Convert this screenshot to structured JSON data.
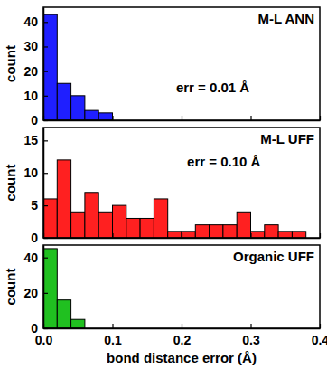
{
  "chart_data": [
    {
      "type": "histogram",
      "title": "M-L ANN",
      "y_label": "count",
      "annotation": "err = 0.01 Å",
      "bins": [
        0,
        0.02,
        0.04,
        0.06,
        0.08,
        0.1
      ],
      "values": [
        43,
        15,
        10,
        4,
        3
      ],
      "color": "#1f1fff",
      "xlim": [
        0,
        0.4
      ],
      "xticks": [
        {
          "value": 0,
          "label": "0.0"
        },
        0.1,
        0.2,
        0.3,
        0.4
      ],
      "ylim": [
        0,
        46
      ],
      "yticks": [
        0,
        10,
        20,
        30,
        40
      ],
      "tick_labels": "y"
    },
    {
      "type": "histogram",
      "title": "M-L UFF",
      "y_label": "count",
      "annotation": "err = 0.10 Å",
      "bins": [
        0,
        0.02,
        0.04,
        0.06,
        0.08,
        0.1,
        0.12,
        0.14,
        0.16,
        0.18,
        0.2,
        0.22,
        0.24,
        0.26,
        0.28,
        0.3,
        0.32,
        0.34,
        0.36,
        0.38
      ],
      "values": [
        6,
        12,
        4,
        7,
        4,
        5,
        3,
        3,
        6,
        1,
        1,
        2,
        2,
        2,
        4,
        1,
        2,
        1,
        1
      ],
      "color": "#ff2020",
      "xlim": [
        0,
        0.4
      ],
      "xticks": [
        {
          "value": 0,
          "label": "0.0"
        },
        0.1,
        0.2,
        0.3,
        0.4
      ],
      "ylim": [
        0,
        17
      ],
      "yticks": [
        0,
        5,
        10,
        15
      ],
      "tick_labels": "y"
    },
    {
      "type": "histogram",
      "title": "Organic UFF",
      "y_label": "count",
      "x_label": "bond distance error (Å)",
      "bins": [
        0,
        0.02,
        0.04,
        0.06
      ],
      "values": [
        45,
        16,
        5
      ],
      "color": "#20c020",
      "xlim": [
        0,
        0.4
      ],
      "xticks": [
        {
          "value": 0,
          "label": "0.0"
        },
        0.1,
        0.2,
        0.3,
        0.4
      ],
      "ylim": [
        0,
        47
      ],
      "yticks": [
        0,
        20,
        40
      ]
    }
  ]
}
